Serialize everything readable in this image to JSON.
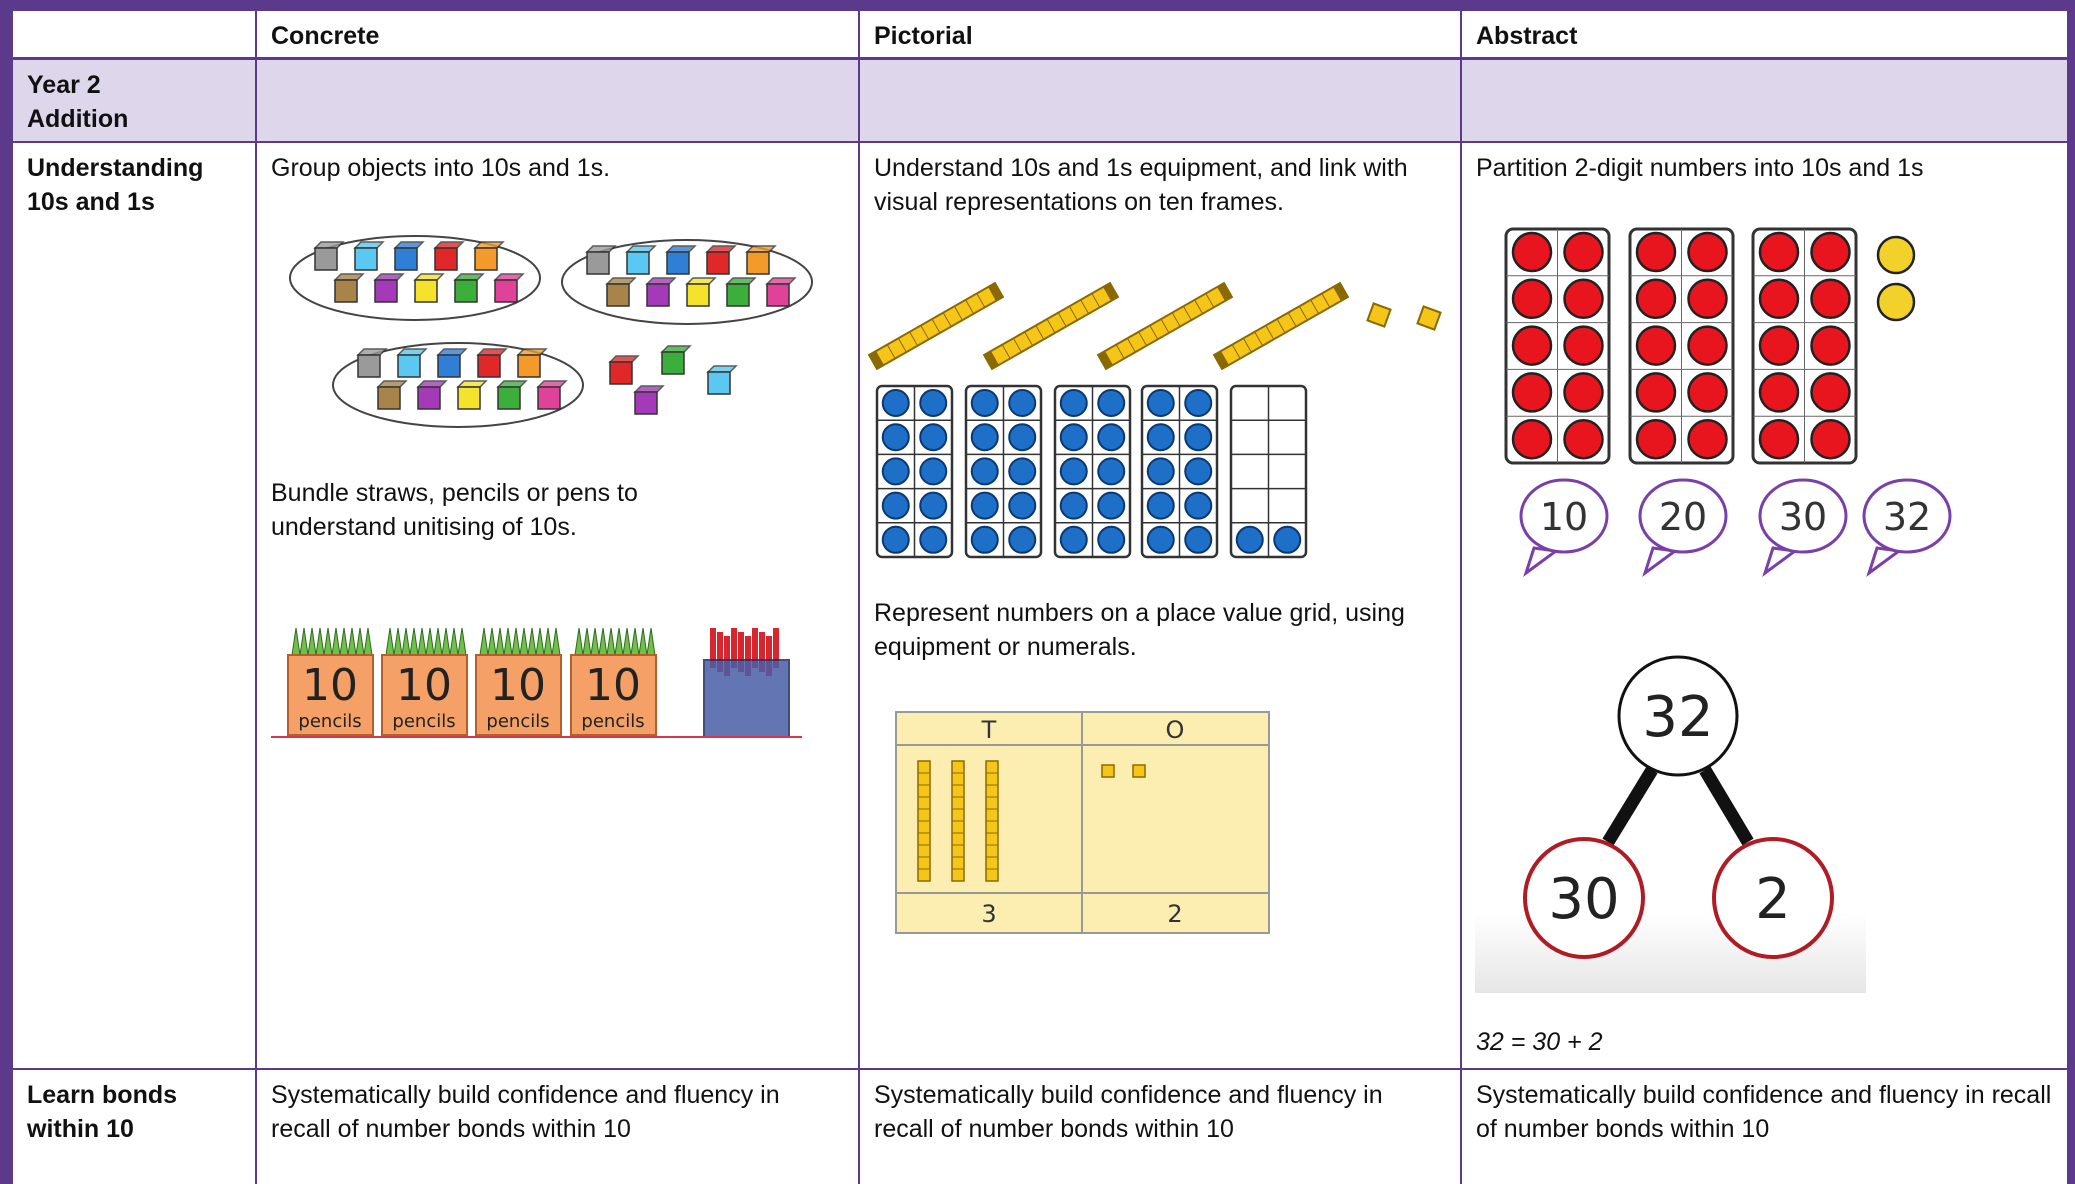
{
  "table": {
    "columns": [
      "Concrete",
      "Pictorial",
      "Abstract"
    ],
    "section": [
      "Year 2",
      "Addition"
    ],
    "rows": [
      {
        "label": "Understanding 10s and 1s",
        "concrete": {
          "text_1": "Group objects into 10s and 1s.",
          "text_2": "Bundle straws, pencils or pens to understand unitising of 10s.",
          "box_number": "10",
          "box_label": "pencils"
        },
        "pictorial": {
          "text_1": "Understand 10s and 1s equipment, and link with visual representations on ten frames.",
          "text_2": "Represent numbers on a place value grid, using equipment or numerals.",
          "grid_headers": [
            "T",
            "O"
          ],
          "grid_values": [
            "3",
            "2"
          ]
        },
        "abstract": {
          "text_1": "Partition 2-digit numbers into 10s and 1s",
          "counts": [
            "10",
            "20",
            "30",
            "32"
          ],
          "whole": "32",
          "parts": [
            "30",
            "2"
          ],
          "equation": "32 = 30 + 2"
        }
      },
      {
        "label": "Learn bonds within 10",
        "concrete": {
          "text_1": "Systematically build confidence and fluency in recall of number bonds within 10"
        },
        "pictorial": {
          "text_1": "Systematically build confidence and fluency in recall of number bonds within 10"
        },
        "abstract": {
          "text_1": "Systematically build confidence and fluency in recall of number bonds within 10"
        }
      }
    ]
  }
}
